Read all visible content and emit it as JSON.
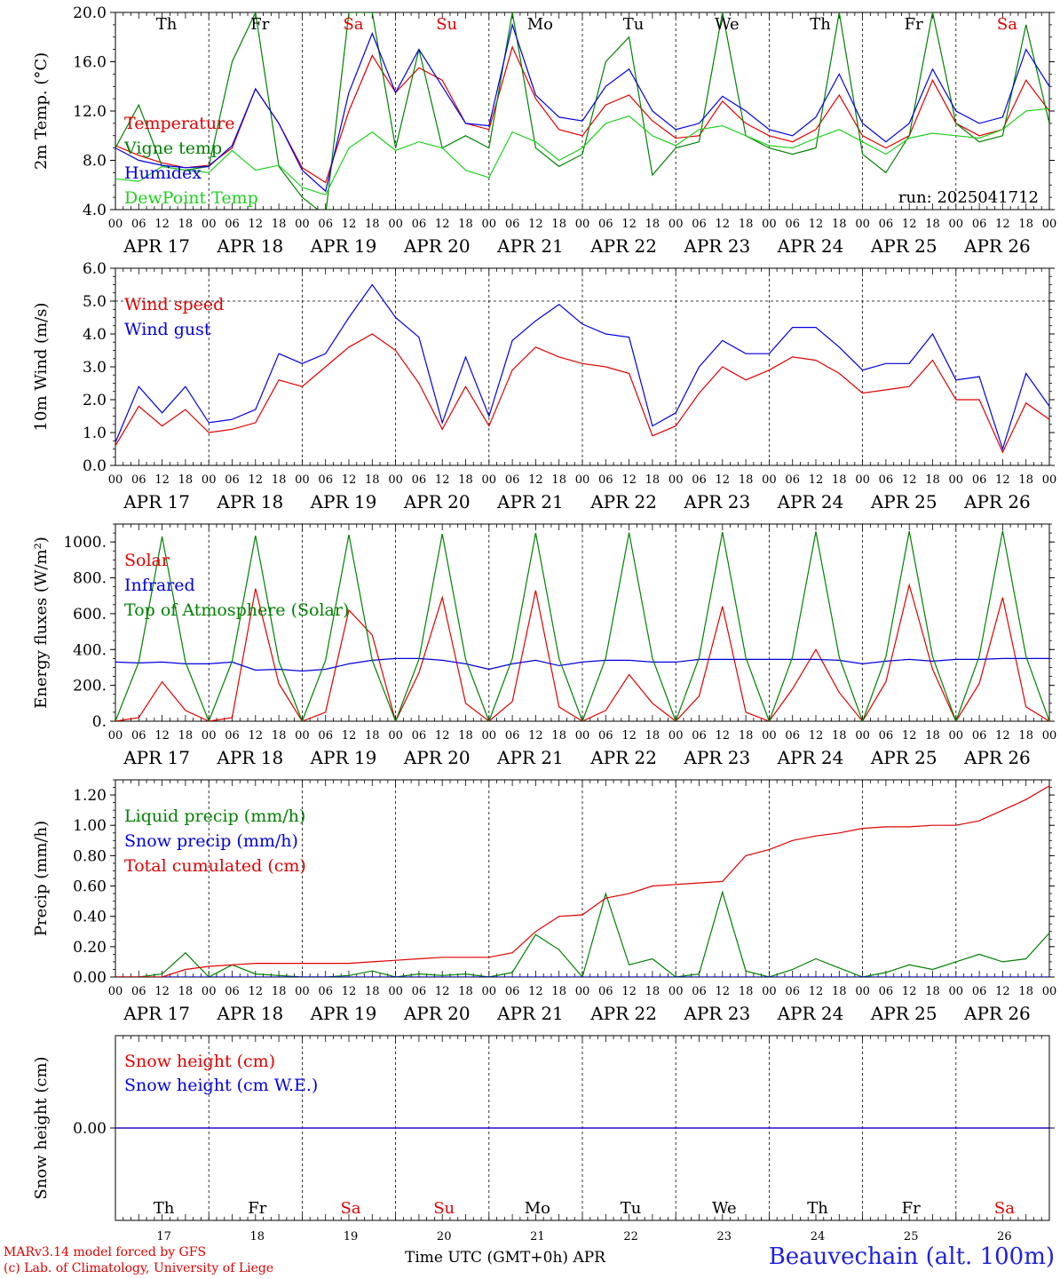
{
  "colors": {
    "red": "#e00000",
    "green": "#008000",
    "blue": "#0000e0",
    "lightgreen": "#20d020",
    "grid": "#000000"
  },
  "days": {
    "labels_top": [
      "Th",
      "Fr",
      "Sa",
      "Su",
      "Mo",
      "Tu",
      "We",
      "Th",
      "Fr",
      "Sa"
    ],
    "weekend": [
      false,
      false,
      true,
      true,
      false,
      false,
      false,
      false,
      false,
      true
    ],
    "dates": [
      "APR 17",
      "APR 18",
      "APR 19",
      "APR 20",
      "APR 21",
      "APR 22",
      "APR 23",
      "APR 24",
      "APR 25",
      "APR 26"
    ],
    "hour_ticks": [
      "00",
      "06",
      "12",
      "18"
    ],
    "day_numbers": [
      "17",
      "18",
      "19",
      "20",
      "21",
      "22",
      "23",
      "24",
      "25",
      "26"
    ]
  },
  "run_label": "run: 2025041712",
  "footer": {
    "model": "MARv3.14 model forced by GFS",
    "lab": "(c) Lab. of Climatology, University of Liege",
    "axis": "Time UTC (GMT+0h) APR",
    "station": "Beauvechain (alt. 100m)"
  },
  "chart_data": [
    {
      "type": "line",
      "ylabel": "2m Temp. (°C)",
      "ylim": [
        4.0,
        20.0
      ],
      "yticks": [
        "4.0",
        "8.0",
        "12.0",
        "16.0",
        "20.0"
      ],
      "ytick_values": [
        4,
        8,
        12,
        16,
        20
      ],
      "x_hours": [
        0,
        6,
        12,
        18,
        24,
        30,
        36,
        42,
        48,
        54,
        60,
        66,
        72,
        78,
        84,
        90,
        96,
        102,
        108,
        114,
        120,
        126,
        132,
        138,
        144,
        150,
        156,
        162,
        168,
        174,
        180,
        186,
        192,
        198,
        204,
        210,
        216,
        222,
        228,
        234,
        240
      ],
      "series": [
        {
          "name": "Temperature",
          "color": "#e00000",
          "values": [
            9.2,
            8.4,
            7.8,
            7.4,
            7.6,
            9.0,
            13.8,
            11.0,
            7.4,
            6.2,
            12.0,
            16.5,
            13.5,
            15.5,
            14.5,
            11.0,
            10.5,
            17.2,
            13.0,
            10.5,
            10.0,
            12.5,
            13.3,
            11.2,
            9.8,
            10.0,
            12.8,
            11.0,
            10.0,
            9.5,
            10.5,
            13.3,
            10.0,
            9.0,
            10.0,
            14.5,
            11.0,
            10.0,
            10.5,
            14.5,
            12.0
          ]
        },
        {
          "name": "Vigne temp",
          "color": "#008000",
          "values": [
            9.0,
            12.5,
            7.5,
            7.2,
            7.5,
            16.0,
            20.0,
            7.5,
            5.0,
            3.5,
            20.0,
            20.0,
            9.0,
            17.0,
            9.0,
            10.0,
            9.0,
            20.0,
            9.0,
            7.5,
            8.5,
            16.0,
            18.0,
            6.8,
            9.0,
            9.5,
            20.0,
            10.0,
            9.0,
            8.5,
            9.0,
            20.0,
            8.5,
            7.0,
            10.0,
            20.0,
            11.0,
            9.5,
            10.0,
            19.0,
            11.0
          ]
        },
        {
          "name": "Humidex",
          "color": "#0000e0",
          "values": [
            9.0,
            8.0,
            7.6,
            7.4,
            7.5,
            9.2,
            13.8,
            11.0,
            7.2,
            5.5,
            13.5,
            18.3,
            13.5,
            17.0,
            14.0,
            11.0,
            10.8,
            19.0,
            13.3,
            11.5,
            11.2,
            14.0,
            15.4,
            12.0,
            10.5,
            11.0,
            13.2,
            12.0,
            10.5,
            10.0,
            11.5,
            15.0,
            11.0,
            9.5,
            11.0,
            15.4,
            12.0,
            11.0,
            11.5,
            17.0,
            14.0
          ]
        },
        {
          "name": "DewPoint Temp",
          "color": "#20d020",
          "values": [
            6.5,
            6.3,
            7.5,
            7.2,
            7.0,
            8.8,
            7.2,
            7.6,
            5.8,
            5.2,
            9.0,
            10.3,
            8.8,
            9.5,
            9.0,
            7.2,
            6.6,
            10.3,
            9.5,
            8.0,
            9.0,
            11.0,
            11.6,
            10.0,
            9.2,
            10.5,
            10.8,
            10.0,
            9.2,
            9.0,
            9.8,
            10.5,
            9.5,
            8.5,
            9.8,
            10.2,
            10.0,
            9.8,
            10.5,
            12.0,
            12.2
          ]
        }
      ]
    },
    {
      "type": "line",
      "ylabel": "10m Wind (m/s)",
      "ylim": [
        0.0,
        6.0
      ],
      "yticks": [
        "0.0",
        "1.0",
        "2.0",
        "3.0",
        "4.0",
        "5.0",
        "6.0"
      ],
      "ytick_values": [
        0,
        1,
        2,
        3,
        4,
        5,
        6
      ],
      "reference_line": 5.0,
      "x_hours": [
        0,
        6,
        12,
        18,
        24,
        30,
        36,
        42,
        48,
        54,
        60,
        66,
        72,
        78,
        84,
        90,
        96,
        102,
        108,
        114,
        120,
        126,
        132,
        138,
        144,
        150,
        156,
        162,
        168,
        174,
        180,
        186,
        192,
        198,
        204,
        210,
        216,
        222,
        228,
        234,
        240
      ],
      "series": [
        {
          "name": "Wind speed",
          "color": "#e00000",
          "values": [
            0.6,
            1.8,
            1.2,
            1.7,
            1.0,
            1.1,
            1.3,
            2.6,
            2.4,
            3.0,
            3.6,
            4.0,
            3.5,
            2.5,
            1.1,
            2.4,
            1.2,
            2.9,
            3.6,
            3.3,
            3.1,
            3.0,
            2.8,
            0.9,
            1.2,
            2.2,
            3.0,
            2.6,
            2.9,
            3.3,
            3.2,
            2.8,
            2.2,
            2.3,
            2.4,
            3.2,
            2.0,
            2.0,
            0.4,
            1.9,
            1.4
          ]
        },
        {
          "name": "Wind gust",
          "color": "#0000e0",
          "values": [
            0.7,
            2.4,
            1.6,
            2.4,
            1.3,
            1.4,
            1.7,
            3.4,
            3.1,
            3.4,
            4.5,
            5.5,
            4.5,
            3.9,
            1.3,
            3.3,
            1.5,
            3.8,
            4.4,
            4.9,
            4.3,
            4.0,
            3.9,
            1.2,
            1.6,
            3.0,
            3.8,
            3.4,
            3.4,
            4.2,
            4.2,
            3.6,
            2.9,
            3.1,
            3.1,
            4.0,
            2.6,
            2.7,
            0.5,
            2.8,
            1.8
          ]
        }
      ]
    },
    {
      "type": "line",
      "ylabel": "Energy fluxes (W/m²)",
      "ylim": [
        0,
        1100
      ],
      "yticks": [
        "0.",
        "200.",
        "400.",
        "600.",
        "800.",
        "1000."
      ],
      "ytick_values": [
        0,
        200,
        400,
        600,
        800,
        1000
      ],
      "x_hours": [
        0,
        6,
        12,
        18,
        24,
        30,
        36,
        42,
        48,
        54,
        60,
        66,
        72,
        78,
        84,
        90,
        96,
        102,
        108,
        114,
        120,
        126,
        132,
        138,
        144,
        150,
        156,
        162,
        168,
        174,
        180,
        186,
        192,
        198,
        204,
        210,
        216,
        222,
        228,
        234,
        240
      ],
      "series": [
        {
          "name": "Solar",
          "color": "#e00000",
          "values": [
            0,
            20,
            220,
            60,
            0,
            20,
            740,
            210,
            0,
            50,
            620,
            480,
            0,
            270,
            690,
            100,
            0,
            110,
            730,
            80,
            0,
            60,
            260,
            100,
            0,
            140,
            640,
            50,
            0,
            180,
            400,
            160,
            0,
            220,
            760,
            290,
            0,
            210,
            690,
            80,
            0
          ]
        },
        {
          "name": "Infrared",
          "color": "#0000e0",
          "values": [
            330,
            325,
            330,
            320,
            320,
            330,
            285,
            290,
            280,
            290,
            320,
            340,
            350,
            350,
            340,
            320,
            290,
            320,
            340,
            310,
            330,
            340,
            340,
            330,
            330,
            345,
            345,
            345,
            345,
            345,
            345,
            340,
            320,
            335,
            345,
            335,
            345,
            345,
            350,
            350,
            350
          ]
        },
        {
          "name": "Top of Atmosphere (Solar)",
          "color": "#008000",
          "values": [
            0,
            330,
            1030,
            330,
            0,
            335,
            1035,
            335,
            0,
            340,
            1040,
            340,
            0,
            345,
            1045,
            345,
            0,
            350,
            1050,
            350,
            0,
            352,
            1052,
            352,
            0,
            355,
            1055,
            355,
            0,
            358,
            1058,
            358,
            0,
            360,
            1060,
            360,
            0,
            362,
            1062,
            362,
            0
          ]
        }
      ]
    },
    {
      "type": "line",
      "ylabel": "Precip (mm/h)",
      "ylim": [
        0.0,
        1.3
      ],
      "yticks": [
        "0.00",
        "0.20",
        "0.40",
        "0.60",
        "0.80",
        "1.00",
        "1.20"
      ],
      "ytick_values": [
        0,
        0.2,
        0.4,
        0.6,
        0.8,
        1.0,
        1.2
      ],
      "x_hours": [
        0,
        6,
        12,
        18,
        24,
        30,
        36,
        42,
        48,
        54,
        60,
        66,
        72,
        78,
        84,
        90,
        96,
        102,
        108,
        114,
        120,
        126,
        132,
        138,
        144,
        150,
        156,
        162,
        168,
        174,
        180,
        186,
        192,
        198,
        204,
        210,
        216,
        222,
        228,
        234,
        240
      ],
      "series": [
        {
          "name": "Liquid precip (mm/h)",
          "color": "#008000",
          "values": [
            0,
            0,
            0.02,
            0.16,
            0,
            0.08,
            0.02,
            0.01,
            0,
            0,
            0.01,
            0.04,
            0,
            0.02,
            0.01,
            0.02,
            0,
            0.03,
            0.28,
            0.18,
            0,
            0.55,
            0.08,
            0.12,
            0,
            0.02,
            0.56,
            0.04,
            0,
            0.05,
            0.12,
            0.06,
            0,
            0.03,
            0.08,
            0.05,
            0.1,
            0.15,
            0.1,
            0.12,
            0.29
          ]
        },
        {
          "name": "Snow precip (mm/h)",
          "color": "#0000e0",
          "values": [
            0,
            0,
            0,
            0,
            0,
            0,
            0,
            0,
            0,
            0,
            0,
            0,
            0,
            0,
            0,
            0,
            0,
            0,
            0,
            0,
            0,
            0,
            0,
            0,
            0,
            0,
            0,
            0,
            0,
            0,
            0,
            0,
            0,
            0,
            0,
            0,
            0,
            0,
            0,
            0,
            0
          ]
        },
        {
          "name": "Total cumulated (cm)",
          "color": "#e00000",
          "values": [
            0,
            0,
            0,
            0.05,
            0.07,
            0.08,
            0.09,
            0.09,
            0.09,
            0.09,
            0.09,
            0.1,
            0.11,
            0.12,
            0.13,
            0.13,
            0.13,
            0.16,
            0.3,
            0.4,
            0.41,
            0.52,
            0.55,
            0.6,
            0.61,
            0.62,
            0.63,
            0.8,
            0.84,
            0.9,
            0.93,
            0.95,
            0.98,
            0.99,
            0.99,
            1.0,
            1.0,
            1.03,
            1.1,
            1.17,
            1.26
          ]
        }
      ]
    },
    {
      "type": "line",
      "ylabel": "Snow height (cm)",
      "ylim": [
        -1.0,
        1.0
      ],
      "yticks": [
        "0.00"
      ],
      "ytick_values": [
        0
      ],
      "x_hours": [
        0,
        240
      ],
      "series": [
        {
          "name": "Snow height (cm)",
          "color": "#e00000",
          "values": [
            0,
            0
          ]
        },
        {
          "name": "Snow height (cm W.E.)",
          "color": "#0000e0",
          "values": [
            0,
            0
          ]
        }
      ]
    }
  ]
}
